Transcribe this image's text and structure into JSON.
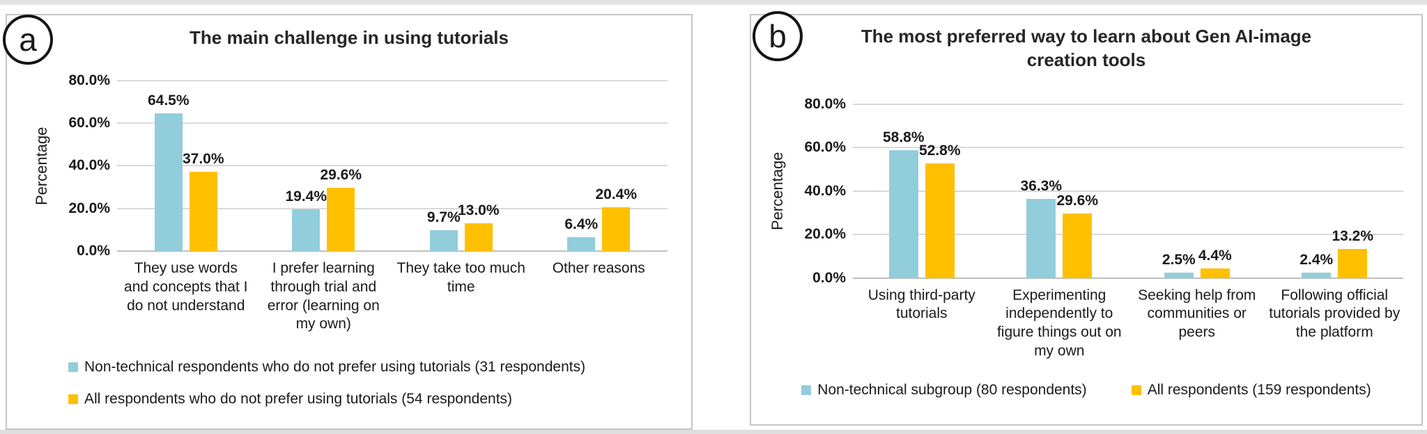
{
  "page": {
    "badges": [
      {
        "label": "a"
      },
      {
        "label": "b"
      }
    ]
  },
  "colors": {
    "series_blue": "#92CDDC",
    "series_yellow": "#FFC000",
    "gridline": "#D9D9D9",
    "axis_line": "#BFBFBF",
    "panel_border": "#C6C6C6",
    "text": "#1A1A1A"
  },
  "chart_data": [
    {
      "id": "a",
      "type": "bar",
      "title": "The main challenge in using tutorials",
      "xlabel": "",
      "ylabel": "Percentage",
      "ylim": [
        0,
        80
      ],
      "grid": true,
      "legend_position": "bottom-left-stacked",
      "yticks": [
        {
          "value": 0,
          "label": "0.0%"
        },
        {
          "value": 20,
          "label": "20.0%"
        },
        {
          "value": 40,
          "label": "40.0%"
        },
        {
          "value": 60,
          "label": "60.0%"
        },
        {
          "value": 80,
          "label": "80.0%"
        }
      ],
      "categories": [
        "They use words and concepts that I do not understand",
        "I prefer learning through trial and error (learning on my own)",
        "They take too much time",
        "Other reasons"
      ],
      "series": [
        {
          "name": "Non-technical respondents who do not prefer using tutorials (31 respondents)",
          "color": "#92CDDC",
          "values": [
            64.5,
            19.4,
            9.7,
            6.4
          ],
          "labels": [
            "64.5%",
            "19.4%",
            "9.7%",
            "6.4%"
          ]
        },
        {
          "name": "All respondents who do not prefer using tutorials (54 respondents)",
          "color": "#FFC000",
          "values": [
            37.0,
            29.6,
            13.0,
            20.4
          ],
          "labels": [
            "37.0%",
            "29.6%",
            "13.0%",
            "20.4%"
          ]
        }
      ]
    },
    {
      "id": "b",
      "type": "bar",
      "title": "The most preferred way to learn about Gen AI-image creation tools",
      "xlabel": "",
      "ylabel": "Percentage",
      "ylim": [
        0,
        80
      ],
      "grid": true,
      "legend_position": "bottom-center-row",
      "yticks": [
        {
          "value": 0,
          "label": "0.0%"
        },
        {
          "value": 20,
          "label": "20.0%"
        },
        {
          "value": 40,
          "label": "40.0%"
        },
        {
          "value": 60,
          "label": "60.0%"
        },
        {
          "value": 80,
          "label": "80.0%"
        }
      ],
      "categories": [
        "Using third-party tutorials",
        "Experimenting independently to figure things out on my own",
        "Seeking help from communities or peers",
        "Following official tutorials provided by the platform"
      ],
      "series": [
        {
          "name": "Non-technical subgroup (80 respondents)",
          "color": "#92CDDC",
          "values": [
            58.8,
            36.3,
            2.5,
            2.4
          ],
          "labels": [
            "58.8%",
            "36.3%",
            "2.5%",
            "2.4%"
          ]
        },
        {
          "name": "All respondents (159 respondents)",
          "color": "#FFC000",
          "values": [
            52.8,
            29.6,
            4.4,
            13.2
          ],
          "labels": [
            "52.8%",
            "29.6%",
            "4.4%",
            "13.2%"
          ]
        }
      ]
    }
  ]
}
